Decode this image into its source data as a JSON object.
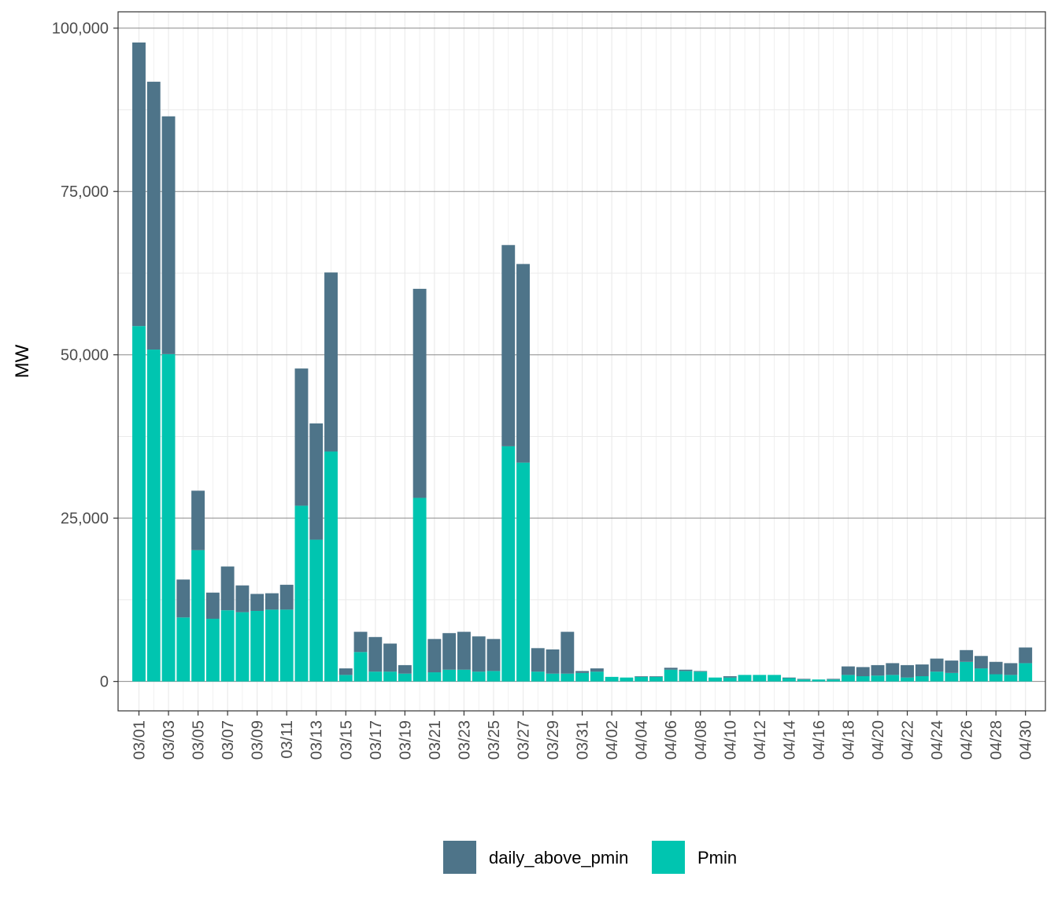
{
  "chart_data": {
    "type": "bar",
    "stacked": true,
    "ylabel": "MW",
    "xlabel": "",
    "ylim": [
      -4500,
      102500
    ],
    "yticks": [
      0,
      25000,
      50000,
      75000,
      100000
    ],
    "ytick_labels": [
      "0",
      "25,000",
      "50,000",
      "75,000",
      "100,000"
    ],
    "grid": true,
    "legend_position": "bottom",
    "colors": {
      "daily_above_pmin": "#4e7489",
      "Pmin": "#00c5b0"
    },
    "categories": [
      "03/01",
      "03/02",
      "03/03",
      "03/04",
      "03/05",
      "03/06",
      "03/07",
      "03/08",
      "03/09",
      "03/10",
      "03/11",
      "03/12",
      "03/13",
      "03/14",
      "03/15",
      "03/16",
      "03/17",
      "03/18",
      "03/19",
      "03/20",
      "03/21",
      "03/22",
      "03/23",
      "03/24",
      "03/25",
      "03/26",
      "03/27",
      "03/28",
      "03/29",
      "03/30",
      "03/31",
      "04/01",
      "04/02",
      "04/03",
      "04/04",
      "04/05",
      "04/06",
      "04/07",
      "04/08",
      "04/09",
      "04/10",
      "04/11",
      "04/12",
      "04/13",
      "04/14",
      "04/15",
      "04/16",
      "04/17",
      "04/18",
      "04/19",
      "04/20",
      "04/21",
      "04/22",
      "04/23",
      "04/24",
      "04/25",
      "04/26",
      "04/27",
      "04/28",
      "04/29",
      "04/30"
    ],
    "xtick_labels": [
      "03/01",
      "03/03",
      "03/05",
      "03/07",
      "03/09",
      "03/11",
      "03/13",
      "03/15",
      "03/17",
      "03/19",
      "03/21",
      "03/23",
      "03/25",
      "03/27",
      "03/29",
      "03/31",
      "04/02",
      "04/04",
      "04/06",
      "04/08",
      "04/10",
      "04/12",
      "04/14",
      "04/16",
      "04/18",
      "04/20",
      "04/22",
      "04/24",
      "04/26",
      "04/28",
      "04/30"
    ],
    "series": [
      {
        "name": "Pmin",
        "values": [
          54400,
          50800,
          50100,
          9800,
          20100,
          9600,
          10900,
          10600,
          10800,
          11000,
          11000,
          26900,
          21700,
          35200,
          1000,
          4500,
          1500,
          1500,
          1200,
          28100,
          1400,
          1800,
          1800,
          1500,
          1600,
          36000,
          33500,
          1500,
          1200,
          1200,
          1300,
          1500,
          700,
          600,
          700,
          700,
          1800,
          1600,
          1500,
          600,
          600,
          1000,
          1000,
          1000,
          500,
          300,
          300,
          300,
          1000,
          800,
          900,
          1000,
          600,
          800,
          1500,
          1300,
          3000,
          2000,
          1100,
          1000,
          2800
        ]
      },
      {
        "name": "daily_above_pmin",
        "values": [
          43400,
          41000,
          36400,
          5800,
          9100,
          4000,
          6700,
          4100,
          2600,
          2500,
          3800,
          21000,
          17800,
          27400,
          1000,
          3100,
          5300,
          4300,
          1300,
          32000,
          5100,
          5600,
          5800,
          5400,
          4900,
          30800,
          30400,
          3600,
          3700,
          6400,
          300,
          500,
          0,
          0,
          100,
          100,
          300,
          200,
          100,
          0,
          200,
          0,
          0,
          0,
          100,
          100,
          0,
          100,
          1300,
          1400,
          1600,
          1800,
          1900,
          1800,
          2000,
          1900,
          1800,
          1900,
          1900,
          1800,
          2400
        ]
      }
    ],
    "legend": [
      "daily_above_pmin",
      "Pmin"
    ]
  }
}
